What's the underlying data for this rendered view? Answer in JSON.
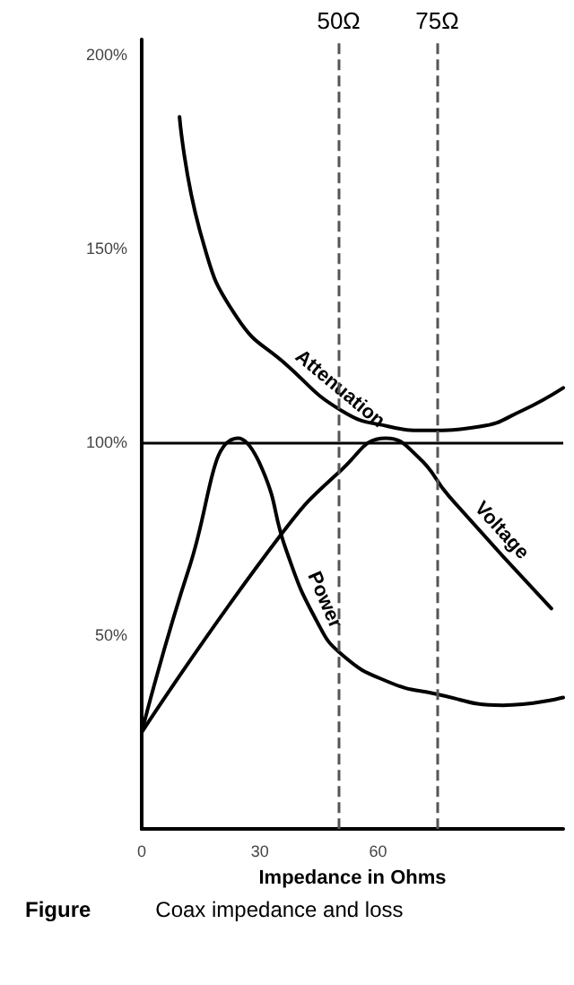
{
  "chart_data": {
    "type": "line",
    "xlabel": "Impedance in Ohms",
    "annotations": [
      "Figure",
      "Coax impedance and loss"
    ],
    "xlim": [
      0,
      107
    ],
    "xticks": [
      0,
      30,
      60
    ],
    "ylim": [
      0,
      204
    ],
    "yticks": [
      {
        "value": 50,
        "label": "50%"
      },
      {
        "value": 100,
        "label": "100%"
      },
      {
        "value": 150,
        "label": "150%"
      },
      {
        "value": 200,
        "label": "200%"
      }
    ],
    "grid": false,
    "legend": false,
    "marker": "none",
    "line_style": "solid",
    "series": [
      {
        "name": "Attenuation",
        "color": "#000000",
        "x": [
          9.6,
          15.2,
          24.3,
          36.7,
          50.9,
          62.8,
          72,
          85.8,
          96.3,
          107
        ],
        "values": [
          184,
          153,
          132,
          120,
          108,
          104,
          103,
          104,
          108,
          114
        ]
      },
      {
        "name": "Power",
        "color": "#000000",
        "x": [
          0,
          12.2,
          24.5,
          30.6,
          36.7,
          44.3,
          50.9,
          62.7,
          74.3,
          91.7,
          107
        ],
        "values": [
          25,
          68,
          101,
          93,
          72,
          54,
          45,
          38,
          35,
          32,
          34
        ]
      },
      {
        "name": "Voltage",
        "color": "#000000",
        "x": [
          0,
          35.3,
          50.9,
          62,
          70.3,
          78,
          104
        ],
        "values": [
          25,
          76,
          93,
          101,
          96,
          86,
          57
        ]
      }
    ],
    "ref_lines": [
      {
        "axis": "y",
        "value": 100,
        "color": "#000000",
        "line_style": "solid"
      },
      {
        "axis": "x",
        "value": 50,
        "label": "50Ω",
        "color": "#555555",
        "line_style": "dashed"
      },
      {
        "axis": "x",
        "value": 75,
        "label": "75Ω",
        "color": "#555555",
        "line_style": "dashed"
      }
    ]
  }
}
